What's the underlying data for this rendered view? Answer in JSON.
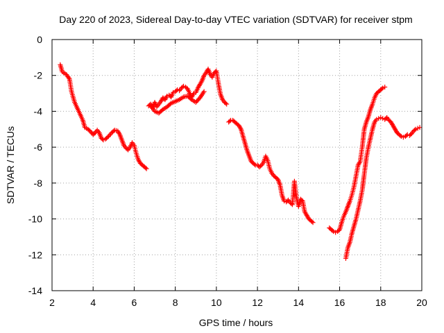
{
  "chart_data": {
    "type": "scatter",
    "title": "Day 220 of 2023, Sidereal Day-to-day VTEC variation (SDTVAR) for receiver stpm",
    "xlabel": "GPS time / hours",
    "ylabel": "SDTVAR / TECUs",
    "xlim": [
      2,
      20
    ],
    "ylim": [
      -14,
      0
    ],
    "xticks": [
      "2",
      "4",
      "6",
      "8",
      "10",
      "12",
      "14",
      "16",
      "18",
      "20"
    ],
    "yticks": [
      "0",
      "-2",
      "-4",
      "-6",
      "-8",
      "-10",
      "-12",
      "-14"
    ],
    "grid": true,
    "marker": "plus",
    "marker_color": "#ff0000",
    "series": [
      {
        "name": "segment-1",
        "x": [
          2.4,
          2.5,
          2.7,
          2.85,
          2.95,
          3.1,
          3.3,
          3.5,
          3.6,
          3.75,
          3.85,
          4.0,
          4.1,
          4.2,
          4.3,
          4.4,
          4.5,
          4.6,
          4.75,
          4.9,
          5.05,
          5.2,
          5.3,
          5.4,
          5.5,
          5.6,
          5.7,
          5.8,
          5.9,
          6.0,
          6.1,
          6.2,
          6.3,
          6.4,
          6.5,
          6.6
        ],
        "y": [
          -1.4,
          -1.8,
          -1.95,
          -2.2,
          -2.9,
          -3.5,
          -4.0,
          -4.5,
          -4.9,
          -5.0,
          -5.1,
          -5.3,
          -5.2,
          -5.05,
          -5.2,
          -5.5,
          -5.6,
          -5.55,
          -5.4,
          -5.2,
          -5.05,
          -5.1,
          -5.3,
          -5.6,
          -5.9,
          -6.05,
          -6.15,
          -6.0,
          -5.75,
          -5.9,
          -6.35,
          -6.7,
          -6.9,
          -7.0,
          -7.1,
          -7.2
        ]
      },
      {
        "name": "segment-2",
        "x": [
          6.7,
          6.8,
          6.9,
          7.0,
          7.1,
          7.2,
          7.3,
          7.4,
          7.5,
          7.6,
          7.7,
          7.8,
          7.9,
          8.0,
          8.1,
          8.2,
          8.3,
          8.4,
          8.5,
          8.6,
          8.7,
          8.8,
          8.9,
          9.0,
          9.1,
          9.2,
          9.3,
          9.4,
          9.5,
          9.6,
          9.7,
          9.8,
          9.9,
          10.0,
          10.1,
          10.2,
          10.3,
          10.4,
          10.5
        ],
        "y": [
          -3.7,
          -3.6,
          -3.8,
          -3.5,
          -3.75,
          -3.6,
          -3.45,
          -3.25,
          -3.35,
          -3.15,
          -3.1,
          -3.2,
          -2.95,
          -2.9,
          -2.8,
          -2.85,
          -2.7,
          -2.6,
          -2.65,
          -2.75,
          -3.0,
          -3.2,
          -3.0,
          -2.95,
          -2.7,
          -2.5,
          -2.3,
          -2.0,
          -1.85,
          -1.65,
          -1.95,
          -2.1,
          -1.85,
          -1.75,
          -2.45,
          -3.05,
          -3.35,
          -3.5,
          -3.6
        ]
      },
      {
        "name": "segment-3",
        "x": [
          6.8,
          7.0,
          7.2,
          7.4,
          7.6,
          7.8,
          8.0,
          8.2,
          8.4,
          8.6,
          8.8,
          9.0,
          9.2,
          9.4
        ],
        "y": [
          -3.7,
          -4.0,
          -4.1,
          -3.9,
          -3.75,
          -3.55,
          -3.45,
          -3.35,
          -3.2,
          -3.15,
          -3.35,
          -3.5,
          -3.25,
          -2.9
        ]
      },
      {
        "name": "segment-4",
        "x": [
          10.6,
          10.7,
          10.8,
          10.9,
          11.0,
          11.1,
          11.2,
          11.3,
          11.4,
          11.5,
          11.6,
          11.7,
          11.8,
          11.9,
          12.0,
          12.1,
          12.2,
          12.3,
          12.4,
          12.5,
          12.6,
          12.7,
          12.8,
          12.9,
          13.0,
          13.1,
          13.2,
          13.3,
          13.4,
          13.5,
          13.6,
          13.7,
          13.8,
          13.85,
          13.9,
          14.0,
          14.1,
          14.2,
          14.3,
          14.4,
          14.5,
          14.6,
          14.7
        ],
        "y": [
          -4.6,
          -4.5,
          -4.5,
          -4.6,
          -4.7,
          -4.8,
          -5.0,
          -5.4,
          -5.8,
          -6.2,
          -6.5,
          -6.8,
          -6.9,
          -7.0,
          -7.0,
          -7.1,
          -7.0,
          -6.85,
          -6.5,
          -6.75,
          -7.2,
          -7.45,
          -7.6,
          -7.7,
          -7.8,
          -8.1,
          -8.7,
          -9.0,
          -9.05,
          -8.95,
          -9.1,
          -9.2,
          -7.9,
          -8.4,
          -8.8,
          -9.3,
          -8.9,
          -9.0,
          -9.6,
          -9.8,
          -10.0,
          -10.1,
          -10.2
        ]
      },
      {
        "name": "segment-5",
        "x": [
          15.5,
          15.6,
          15.7,
          15.8,
          15.9,
          16.0,
          16.1,
          16.2,
          16.3,
          16.4,
          16.5,
          16.6,
          16.7,
          16.8,
          16.9,
          17.0,
          17.1,
          17.2,
          17.3,
          17.4,
          17.5,
          17.6,
          17.7,
          17.8,
          17.9,
          18.0,
          18.1,
          18.2
        ],
        "y": [
          -10.5,
          -10.6,
          -10.7,
          -10.75,
          -10.7,
          -10.6,
          -10.2,
          -9.85,
          -9.6,
          -9.3,
          -9.0,
          -8.65,
          -8.2,
          -7.6,
          -7.0,
          -6.8,
          -6.0,
          -5.0,
          -4.6,
          -4.3,
          -3.9,
          -3.6,
          -3.25,
          -3.0,
          -2.9,
          -2.8,
          -2.7,
          -2.65
        ]
      },
      {
        "name": "segment-6",
        "x": [
          16.3,
          16.4,
          16.5,
          16.6,
          16.7,
          16.8,
          16.9,
          17.0,
          17.1,
          17.2,
          17.3,
          17.4,
          17.5,
          17.6,
          17.7,
          17.8,
          17.9,
          18.0,
          18.1,
          18.2,
          18.3,
          18.4,
          18.5,
          18.6,
          18.7,
          18.8,
          18.9,
          19.0,
          19.1,
          19.2,
          19.3,
          19.4,
          19.5,
          19.6,
          19.7,
          19.8,
          19.9
        ],
        "y": [
          -12.2,
          -11.6,
          -11.3,
          -10.8,
          -10.4,
          -10.0,
          -9.5,
          -9.0,
          -8.4,
          -7.5,
          -6.6,
          -6.0,
          -5.5,
          -5.0,
          -4.6,
          -4.45,
          -4.4,
          -4.35,
          -4.4,
          -4.45,
          -4.35,
          -4.5,
          -4.6,
          -4.8,
          -5.0,
          -5.2,
          -5.3,
          -5.4,
          -5.45,
          -5.4,
          -5.3,
          -5.35,
          -5.25,
          -5.1,
          -5.0,
          -4.95,
          -4.9
        ]
      }
    ]
  }
}
